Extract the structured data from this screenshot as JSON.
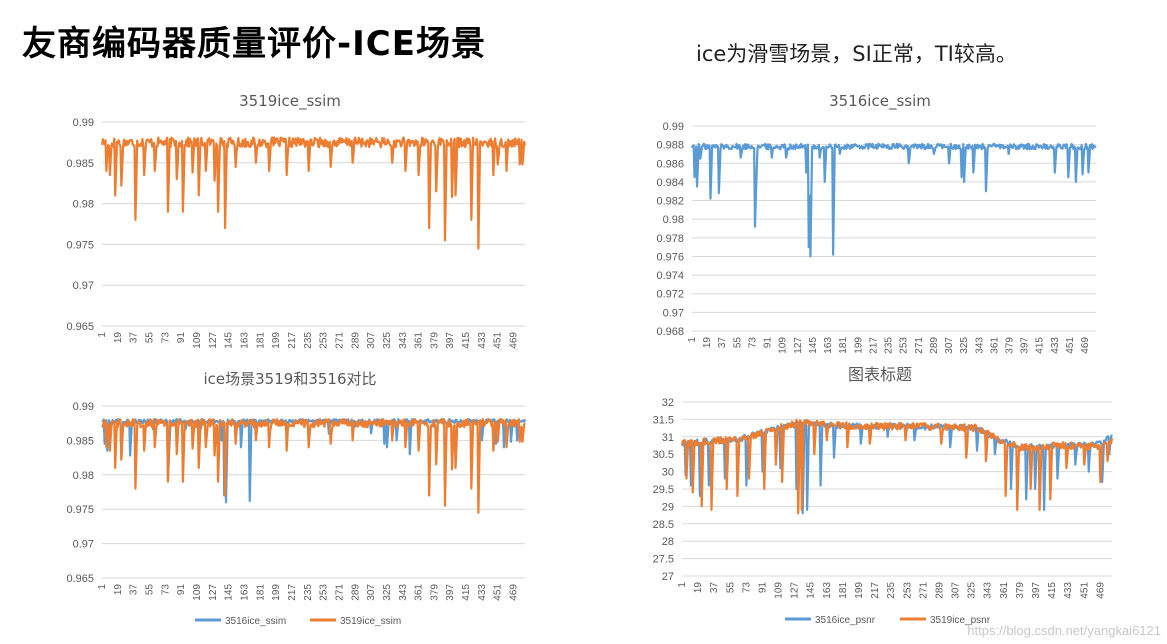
{
  "slide": {
    "title": "友商编码器质量评价-ICE场景",
    "subtitle": "ice为滑雪场景，SI正常，TI较高。",
    "watermark": "https://blog.csdn.net/yangkai6121"
  },
  "colors": {
    "blue": "#5B9BD5",
    "orange": "#ED7D31",
    "grid": "#d9d9d9",
    "axis_text": "#595959"
  },
  "chart_data": [
    {
      "id": "c1",
      "type": "line",
      "title": "3519ice_ssim",
      "x_labels": [
        "1",
        "19",
        "37",
        "55",
        "73",
        "91",
        "109",
        "127",
        "145",
        "163",
        "181",
        "199",
        "217",
        "235",
        "253",
        "271",
        "289",
        "307",
        "325",
        "343",
        "361",
        "379",
        "397",
        "415",
        "433",
        "451",
        "469"
      ],
      "y_ticks": [
        "0.99",
        "0.985",
        "0.98",
        "0.975",
        "0.97",
        "0.965"
      ],
      "ylim": [
        0.965,
        0.99
      ],
      "legend": [],
      "series": [
        {
          "name": "3519ice_ssim",
          "color": "#ED7D31",
          "baseline": 0.9875,
          "noise": 0.0006,
          "dips": [
            [
              5,
              0.984
            ],
            [
              9,
              0.9835
            ],
            [
              15,
              0.981
            ],
            [
              22,
              0.9822
            ],
            [
              38,
              0.978
            ],
            [
              48,
              0.9835
            ],
            [
              60,
              0.984
            ],
            [
              75,
              0.979
            ],
            [
              85,
              0.983
            ],
            [
              92,
              0.979
            ],
            [
              103,
              0.9838
            ],
            [
              110,
              0.981
            ],
            [
              118,
              0.984
            ],
            [
              128,
              0.9828
            ],
            [
              132,
              0.979
            ],
            [
              140,
              0.977
            ],
            [
              152,
              0.9845
            ],
            [
              175,
              0.985
            ],
            [
              190,
              0.984
            ],
            [
              210,
              0.9835
            ],
            [
              235,
              0.984
            ],
            [
              260,
              0.9845
            ],
            [
              285,
              0.985
            ],
            [
              330,
              0.985
            ],
            [
              345,
              0.984
            ],
            [
              360,
              0.9835
            ],
            [
              372,
              0.977
            ],
            [
              380,
              0.9815
            ],
            [
              390,
              0.9755
            ],
            [
              398,
              0.9808
            ],
            [
              402,
              0.981
            ],
            [
              420,
              0.978
            ],
            [
              428,
              0.9745
            ],
            [
              445,
              0.9835
            ],
            [
              450,
              0.9848
            ],
            [
              460,
              0.984
            ],
            [
              475,
              0.9848
            ],
            [
              478,
              0.9848
            ]
          ]
        }
      ]
    },
    {
      "id": "c2",
      "type": "line",
      "title": "3516ice_ssim",
      "x_labels": [
        "1",
        "19",
        "37",
        "55",
        "73",
        "91",
        "109",
        "127",
        "145",
        "163",
        "181",
        "199",
        "217",
        "235",
        "253",
        "271",
        "289",
        "307",
        "325",
        "343",
        "361",
        "379",
        "397",
        "415",
        "433",
        "451",
        "469"
      ],
      "y_ticks": [
        "0.99",
        "0.988",
        "0.986",
        "0.984",
        "0.982",
        "0.98",
        "0.978",
        "0.976",
        "0.974",
        "0.972",
        "0.97",
        "0.968"
      ],
      "ylim": [
        0.968,
        0.99
      ],
      "legend": [],
      "series": [
        {
          "name": "3516ice_ssim",
          "color": "#5B9BD5",
          "baseline": 0.9878,
          "noise": 0.0003,
          "dips": [
            [
              3,
              0.9845
            ],
            [
              6,
              0.9835
            ],
            [
              10,
              0.9865
            ],
            [
              22,
              0.9822
            ],
            [
              32,
              0.9828
            ],
            [
              58,
              0.9866
            ],
            [
              75,
              0.9792
            ],
            [
              76,
              0.9822
            ],
            [
              95,
              0.9866
            ],
            [
              112,
              0.9866
            ],
            [
              136,
              0.985
            ],
            [
              139,
              0.977
            ],
            [
              141,
              0.976
            ],
            [
              152,
              0.9866
            ],
            [
              158,
              0.984
            ],
            [
              168,
              0.9762
            ],
            [
              176,
              0.987
            ],
            [
              258,
              0.986
            ],
            [
              288,
              0.987
            ],
            [
              306,
              0.986
            ],
            [
              321,
              0.9845
            ],
            [
              324,
              0.984
            ],
            [
              335,
              0.985
            ],
            [
              350,
              0.983
            ],
            [
              377,
              0.987
            ],
            [
              432,
              0.985
            ],
            [
              448,
              0.9845
            ],
            [
              457,
              0.984
            ],
            [
              465,
              0.9848
            ],
            [
              472,
              0.985
            ]
          ]
        }
      ]
    },
    {
      "id": "c3",
      "type": "line",
      "title": "ice场景3519和3516对比",
      "x_labels": [
        "1",
        "19",
        "37",
        "55",
        "73",
        "91",
        "109",
        "127",
        "145",
        "163",
        "181",
        "199",
        "217",
        "235",
        "253",
        "271",
        "289",
        "307",
        "325",
        "343",
        "361",
        "379",
        "397",
        "415",
        "433",
        "451",
        "469"
      ],
      "y_ticks": [
        "0.99",
        "0.985",
        "0.98",
        "0.975",
        "0.97",
        "0.965"
      ],
      "ylim": [
        0.965,
        0.99
      ],
      "legend": [
        "3516ice_ssim",
        "3519ice_ssim"
      ],
      "series": [
        {
          "name": "3516ice_ssim",
          "color": "#5B9BD5",
          "baseline": 0.9878,
          "noise": 0.0003,
          "dips": [
            [
              3,
              0.9845
            ],
            [
              6,
              0.9835
            ],
            [
              10,
              0.9865
            ],
            [
              22,
              0.9822
            ],
            [
              32,
              0.9828
            ],
            [
              58,
              0.9866
            ],
            [
              75,
              0.9792
            ],
            [
              76,
              0.9822
            ],
            [
              95,
              0.9866
            ],
            [
              112,
              0.9866
            ],
            [
              136,
              0.985
            ],
            [
              139,
              0.977
            ],
            [
              141,
              0.976
            ],
            [
              152,
              0.9866
            ],
            [
              158,
              0.984
            ],
            [
              168,
              0.9762
            ],
            [
              176,
              0.987
            ],
            [
              258,
              0.986
            ],
            [
              288,
              0.987
            ],
            [
              306,
              0.986
            ],
            [
              321,
              0.9845
            ],
            [
              324,
              0.984
            ],
            [
              335,
              0.985
            ],
            [
              350,
              0.983
            ],
            [
              377,
              0.987
            ],
            [
              432,
              0.985
            ],
            [
              448,
              0.9845
            ],
            [
              457,
              0.984
            ],
            [
              465,
              0.9848
            ],
            [
              472,
              0.985
            ]
          ]
        },
        {
          "name": "3519ice_ssim",
          "color": "#ED7D31",
          "baseline": 0.9875,
          "noise": 0.0006,
          "dips": [
            [
              5,
              0.984
            ],
            [
              9,
              0.9835
            ],
            [
              15,
              0.981
            ],
            [
              22,
              0.9822
            ],
            [
              38,
              0.978
            ],
            [
              48,
              0.9835
            ],
            [
              60,
              0.984
            ],
            [
              75,
              0.979
            ],
            [
              85,
              0.983
            ],
            [
              92,
              0.979
            ],
            [
              103,
              0.9838
            ],
            [
              110,
              0.981
            ],
            [
              118,
              0.984
            ],
            [
              128,
              0.9828
            ],
            [
              132,
              0.979
            ],
            [
              140,
              0.977
            ],
            [
              152,
              0.9845
            ],
            [
              175,
              0.985
            ],
            [
              190,
              0.984
            ],
            [
              210,
              0.9835
            ],
            [
              235,
              0.984
            ],
            [
              260,
              0.9845
            ],
            [
              285,
              0.985
            ],
            [
              330,
              0.985
            ],
            [
              345,
              0.984
            ],
            [
              360,
              0.9835
            ],
            [
              372,
              0.977
            ],
            [
              380,
              0.9815
            ],
            [
              390,
              0.9755
            ],
            [
              398,
              0.9808
            ],
            [
              402,
              0.981
            ],
            [
              420,
              0.978
            ],
            [
              428,
              0.9745
            ],
            [
              445,
              0.9835
            ],
            [
              450,
              0.9848
            ],
            [
              460,
              0.984
            ],
            [
              475,
              0.9848
            ],
            [
              478,
              0.9848
            ]
          ]
        }
      ]
    },
    {
      "id": "c4",
      "type": "line",
      "title": "图表标题",
      "x_labels": [
        "1",
        "19",
        "37",
        "55",
        "73",
        "91",
        "109",
        "127",
        "145",
        "163",
        "181",
        "199",
        "217",
        "235",
        "253",
        "271",
        "289",
        "307",
        "325",
        "343",
        "361",
        "379",
        "397",
        "415",
        "433",
        "451",
        "469"
      ],
      "y_ticks": [
        "32",
        "31.5",
        "31",
        "30.5",
        "30",
        "29.5",
        "29",
        "28.5",
        "28",
        "27.5",
        "27"
      ],
      "ylim": [
        27,
        32
      ],
      "legend": [
        "3516ice_psnr",
        "3519ice_psnr"
      ],
      "series": [
        {
          "name": "3516ice_psnr",
          "color": "#5B9BD5",
          "profile": [
            [
              0,
              30.8
            ],
            [
              40,
              30.9
            ],
            [
              60,
              30.9
            ],
            [
              100,
              31.2
            ],
            [
              130,
              31.4
            ],
            [
              200,
              31.3
            ],
            [
              260,
              31.3
            ],
            [
              330,
              31.25
            ],
            [
              355,
              30.9
            ],
            [
              380,
              30.7
            ],
            [
              430,
              30.75
            ],
            [
              470,
              30.8
            ],
            [
              482,
              31.1
            ]
          ],
          "noise": 0.08,
          "dips": [
            [
              4,
              29.9
            ],
            [
              10,
              29.6
            ],
            [
              20,
              29.3
            ],
            [
              30,
              29.6
            ],
            [
              48,
              29.8
            ],
            [
              72,
              29.6
            ],
            [
              90,
              30.0
            ],
            [
              110,
              30.1
            ],
            [
              128,
              29.5
            ],
            [
              135,
              28.8
            ],
            [
              140,
              28.9
            ],
            [
              155,
              29.6
            ],
            [
              170,
              30.4
            ],
            [
              200,
              30.8
            ],
            [
              230,
              31.0
            ],
            [
              260,
              30.9
            ],
            [
              300,
              30.7
            ],
            [
              330,
              30.6
            ],
            [
              350,
              30.5
            ],
            [
              368,
              29.5
            ],
            [
              385,
              29.2
            ],
            [
              395,
              29.5
            ],
            [
              405,
              28.9
            ],
            [
              420,
              29.8
            ],
            [
              440,
              30.2
            ],
            [
              455,
              30.0
            ],
            [
              470,
              29.7
            ],
            [
              478,
              30.5
            ]
          ]
        },
        {
          "name": "3519ice_psnr",
          "color": "#ED7D31",
          "profile": [
            [
              0,
              30.8
            ],
            [
              40,
              30.9
            ],
            [
              60,
              30.9
            ],
            [
              100,
              31.2
            ],
            [
              130,
              31.4
            ],
            [
              200,
              31.3
            ],
            [
              260,
              31.3
            ],
            [
              330,
              31.25
            ],
            [
              355,
              30.9
            ],
            [
              380,
              30.7
            ],
            [
              430,
              30.75
            ],
            [
              470,
              30.7
            ],
            [
              482,
              30.9
            ]
          ],
          "noise": 0.1,
          "dips": [
            [
              5,
              29.8
            ],
            [
              12,
              29.4
            ],
            [
              22,
              29.0
            ],
            [
              33,
              28.9
            ],
            [
              50,
              29.5
            ],
            [
              62,
              29.3
            ],
            [
              75,
              29.8
            ],
            [
              92,
              29.5
            ],
            [
              105,
              30.2
            ],
            [
              112,
              29.7
            ],
            [
              130,
              28.8
            ],
            [
              134,
              28.9
            ],
            [
              148,
              30.5
            ],
            [
              162,
              30.9
            ],
            [
              185,
              30.7
            ],
            [
              210,
              30.8
            ],
            [
              250,
              30.9
            ],
            [
              290,
              30.8
            ],
            [
              318,
              30.4
            ],
            [
              340,
              30.3
            ],
            [
              362,
              29.3
            ],
            [
              375,
              28.9
            ],
            [
              390,
              29.5
            ],
            [
              400,
              28.9
            ],
            [
              412,
              29.2
            ],
            [
              430,
              30.1
            ],
            [
              450,
              30.2
            ],
            [
              468,
              29.7
            ],
            [
              476,
              30.3
            ]
          ]
        }
      ]
    }
  ]
}
